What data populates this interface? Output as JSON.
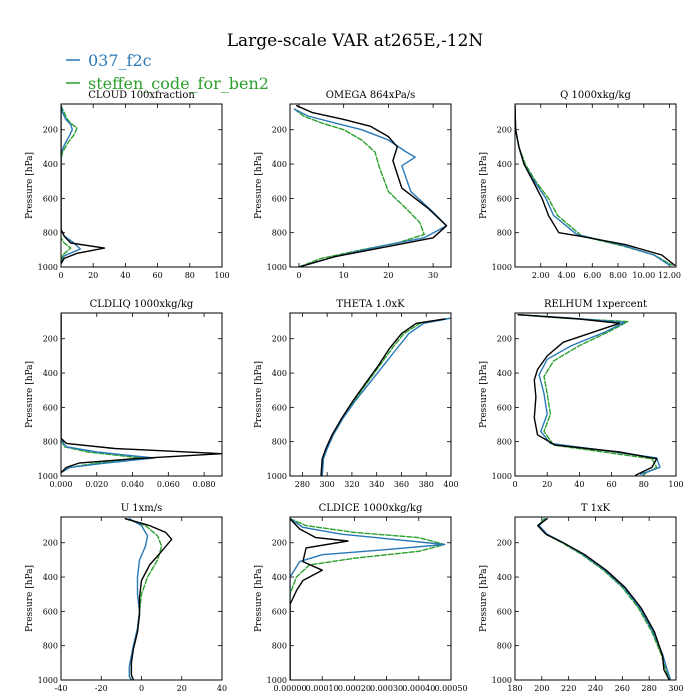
{
  "title": "Large-scale VAR at265E,-12N",
  "legend": [
    {
      "label": "037_f2c",
      "color": "#2878b8",
      "dash": false
    },
    {
      "label": "steffen_code_for_ben2",
      "color": "#2ca02c",
      "dash": true
    }
  ],
  "colors": {
    "control": "#000000",
    "blue": "#2878b8",
    "green": "#2ca02c"
  },
  "chart_data": [
    {
      "type": "line",
      "title": "CLOUD 100xfraction",
      "ylabel": "Pressure [hPa]",
      "xlim": [
        0,
        100
      ],
      "ylim": [
        1000,
        50
      ],
      "y_inverted": true,
      "xticks": [
        0,
        20,
        40,
        60,
        80,
        100
      ],
      "xticklabels": [
        "0",
        "20",
        "40",
        "60",
        "80",
        "100"
      ],
      "yticks": [
        200,
        400,
        600,
        800,
        1000
      ],
      "series": [
        {
          "color": "#2ca02c",
          "dash": true,
          "x": [
            0,
            2,
            4,
            7,
            10,
            8,
            4,
            1,
            0,
            0,
            0,
            0,
            2,
            6,
            1,
            0
          ],
          "y": [
            60,
            100,
            140,
            170,
            190,
            230,
            280,
            330,
            370,
            600,
            780,
            830,
            860,
            890,
            930,
            980
          ]
        },
        {
          "color": "#2878b8",
          "x": [
            0,
            1,
            3,
            6,
            7,
            5,
            2,
            0,
            0,
            0,
            0,
            2,
            8,
            12,
            2,
            0
          ],
          "y": [
            60,
            100,
            140,
            170,
            200,
            240,
            290,
            340,
            380,
            600,
            780,
            820,
            860,
            895,
            935,
            980
          ]
        },
        {
          "color": "#000000",
          "x": [
            0,
            0,
            0,
            0,
            2,
            6,
            27,
            10,
            2,
            0
          ],
          "y": [
            60,
            300,
            600,
            780,
            820,
            860,
            890,
            920,
            950,
            980
          ]
        }
      ]
    },
    {
      "type": "line",
      "title": "OMEGA 864xPa/s",
      "ylabel": "Pressure [hPa]",
      "xlim": [
        -2,
        34
      ],
      "ylim": [
        1000,
        50
      ],
      "y_inverted": true,
      "xticks": [
        0,
        10,
        20,
        30
      ],
      "xticklabels": [
        "0",
        "10",
        "20",
        "30"
      ],
      "yticks": [
        200,
        400,
        600,
        800,
        1000
      ],
      "series": [
        {
          "color": "#2ca02c",
          "dash": true,
          "x": [
            -1,
            1,
            5,
            10,
            14,
            17,
            18,
            20,
            24,
            27,
            28,
            22,
            14,
            5,
            0
          ],
          "y": [
            80,
            120,
            160,
            200,
            260,
            330,
            420,
            560,
            660,
            740,
            810,
            860,
            900,
            950,
            1000
          ]
        },
        {
          "color": "#2878b8",
          "x": [
            -1,
            2,
            8,
            14,
            20,
            24,
            26,
            23,
            25,
            30,
            33,
            28,
            18,
            8,
            0
          ],
          "y": [
            80,
            120,
            160,
            200,
            260,
            330,
            360,
            410,
            560,
            680,
            760,
            830,
            880,
            940,
            1000
          ]
        },
        {
          "color": "#000000",
          "x": [
            -0.5,
            3,
            10,
            16,
            20,
            22,
            21,
            23,
            29,
            33,
            30,
            20,
            8,
            0
          ],
          "y": [
            60,
            100,
            140,
            180,
            240,
            300,
            380,
            540,
            660,
            760,
            830,
            880,
            940,
            1000
          ]
        }
      ]
    },
    {
      "type": "line",
      "title": "Q 1000xkg/kg",
      "ylabel": "Pressure [hPa]",
      "xlim": [
        0,
        12.5
      ],
      "ylim": [
        1000,
        50
      ],
      "y_inverted": true,
      "xticks": [
        2,
        4,
        6,
        8,
        10,
        12
      ],
      "xticklabels": [
        "2.00",
        "4.00",
        "6.00",
        "8.00",
        "10.00",
        "12.00"
      ],
      "yticks": [
        200,
        400,
        600,
        800,
        1000
      ],
      "series": [
        {
          "color": "#2ca02c",
          "dash": true,
          "x": [
            0,
            0.05,
            0.3,
            0.8,
            1.6,
            2.6,
            3.3,
            5.2,
            8.5,
            10.8,
            12.2
          ],
          "y": [
            60,
            200,
            300,
            400,
            500,
            600,
            700,
            820,
            880,
            930,
            990
          ]
        },
        {
          "color": "#2878b8",
          "x": [
            0,
            0.05,
            0.3,
            0.7,
            1.5,
            2.4,
            3.0,
            4.8,
            8.2,
            10.8,
            12.0
          ],
          "y": [
            60,
            200,
            300,
            400,
            500,
            600,
            700,
            810,
            870,
            930,
            990
          ]
        },
        {
          "color": "#000000",
          "x": [
            0,
            0.05,
            0.3,
            0.7,
            1.4,
            2.1,
            2.6,
            3.4,
            5.0,
            8.6,
            11.4,
            12.4
          ],
          "y": [
            60,
            200,
            300,
            400,
            500,
            600,
            700,
            800,
            820,
            870,
            930,
            990
          ]
        }
      ]
    },
    {
      "type": "line",
      "title": "CLDLIQ 1000xkg/kg",
      "ylabel": "Pressure [hPa]",
      "xlim": [
        0,
        0.09
      ],
      "ylim": [
        1000,
        50
      ],
      "y_inverted": true,
      "xticks": [
        0,
        0.02,
        0.04,
        0.06,
        0.08
      ],
      "xticklabels": [
        "0.000",
        "0.020",
        "0.040",
        "0.060",
        "0.080"
      ],
      "yticks": [
        200,
        400,
        600,
        800,
        1000
      ],
      "series": [
        {
          "color": "#2ca02c",
          "dash": true,
          "x": [
            0,
            0,
            0,
            0.002,
            0.015,
            0.045,
            0.02,
            0.005,
            0
          ],
          "y": [
            60,
            600,
            790,
            830,
            860,
            895,
            925,
            950,
            980
          ]
        },
        {
          "color": "#2878b8",
          "x": [
            0,
            0,
            0,
            0.003,
            0.02,
            0.052,
            0.025,
            0.005,
            0
          ],
          "y": [
            60,
            600,
            790,
            830,
            860,
            895,
            925,
            950,
            980
          ]
        },
        {
          "color": "#000000",
          "x": [
            0,
            0,
            0,
            0.003,
            0.03,
            0.09,
            0.04,
            0.01,
            0.003,
            0
          ],
          "y": [
            60,
            600,
            780,
            810,
            840,
            870,
            900,
            925,
            950,
            980
          ]
        }
      ]
    },
    {
      "type": "line",
      "title": "THETA 1.0xK",
      "ylabel": "Pressure [hPa]",
      "xlim": [
        270,
        400
      ],
      "ylim": [
        1000,
        50
      ],
      "y_inverted": true,
      "xticks": [
        280,
        300,
        320,
        340,
        360,
        380,
        400
      ],
      "xticklabels": [
        "280",
        "300",
        "320",
        "340",
        "360",
        "380",
        "400"
      ],
      "yticks": [
        200,
        400,
        600,
        800,
        1000
      ],
      "series": [
        {
          "color": "#2ca02c",
          "dash": true,
          "x": [
            296,
            297,
            300,
            305,
            313,
            322,
            332,
            342,
            352,
            362,
            375,
            400
          ],
          "y": [
            1000,
            900,
            840,
            760,
            660,
            560,
            460,
            360,
            260,
            170,
            110,
            80
          ]
        },
        {
          "color": "#2878b8",
          "x": [
            296,
            297,
            300,
            305,
            313,
            323,
            334,
            345,
            356,
            366,
            378,
            400
          ],
          "y": [
            1000,
            900,
            840,
            760,
            660,
            560,
            460,
            360,
            260,
            170,
            110,
            80
          ]
        },
        {
          "color": "#000000",
          "x": [
            295,
            296,
            299,
            304,
            312,
            321,
            331,
            341,
            350,
            360,
            372,
            395
          ],
          "y": [
            1000,
            900,
            840,
            760,
            660,
            560,
            460,
            360,
            260,
            170,
            110,
            85
          ]
        }
      ]
    },
    {
      "type": "line",
      "title": "RELHUM 1xpercent",
      "ylabel": "Pressure [hPa]",
      "xlim": [
        0,
        100
      ],
      "ylim": [
        1000,
        50
      ],
      "y_inverted": true,
      "xticks": [
        0,
        20,
        40,
        60,
        80,
        100
      ],
      "xticklabels": [
        "0",
        "20",
        "40",
        "60",
        "80",
        "100"
      ],
      "yticks": [
        200,
        400,
        600,
        800,
        1000
      ],
      "series": [
        {
          "color": "#2ca02c",
          "dash": true,
          "x": [
            2,
            30,
            70,
            58,
            40,
            24,
            18,
            20,
            22,
            18,
            24,
            55,
            85,
            88,
            80
          ],
          "y": [
            60,
            80,
            100,
            160,
            240,
            330,
            420,
            520,
            640,
            740,
            820,
            860,
            900,
            950,
            990
          ]
        },
        {
          "color": "#2878b8",
          "x": [
            2,
            35,
            68,
            55,
            35,
            20,
            15,
            18,
            20,
            16,
            22,
            55,
            88,
            90,
            78
          ],
          "y": [
            60,
            80,
            105,
            165,
            240,
            320,
            410,
            520,
            640,
            740,
            810,
            850,
            895,
            950,
            990
          ]
        },
        {
          "color": "#000000",
          "x": [
            2,
            40,
            65,
            30,
            20,
            14,
            12,
            13,
            12,
            14,
            25,
            65,
            88,
            85,
            75
          ],
          "y": [
            60,
            85,
            110,
            220,
            300,
            380,
            440,
            540,
            660,
            760,
            820,
            860,
            900,
            950,
            995
          ]
        }
      ]
    },
    {
      "type": "line",
      "title": "U 1xm/s",
      "ylabel": "Pressure [hPa]",
      "xlim": [
        -40,
        40
      ],
      "ylim": [
        1000,
        50
      ],
      "y_inverted": true,
      "xticks": [
        -40,
        -20,
        0,
        20,
        40
      ],
      "xticklabels": [
        "-40",
        "-20",
        "0",
        "20",
        "40"
      ],
      "yticks": [
        200,
        400,
        600,
        800,
        1000
      ],
      "series": [
        {
          "color": "#2ca02c",
          "dash": true,
          "x": [
            -8,
            2,
            8,
            10,
            8,
            3,
            0,
            -1,
            -2,
            -4,
            -5,
            -6,
            -6,
            -5
          ],
          "y": [
            60,
            100,
            160,
            220,
            300,
            400,
            500,
            600,
            700,
            800,
            860,
            920,
            980,
            1000
          ]
        },
        {
          "color": "#2878b8",
          "x": [
            -6,
            0,
            3,
            2,
            -1,
            -2,
            -2,
            -1,
            -2,
            -4,
            -5,
            -6,
            -6,
            -5
          ],
          "y": [
            60,
            100,
            160,
            220,
            300,
            400,
            500,
            600,
            700,
            800,
            860,
            920,
            980,
            1000
          ]
        },
        {
          "color": "#000000",
          "x": [
            -8,
            4,
            12,
            15,
            10,
            4,
            0,
            -1,
            -1,
            -2,
            -4,
            -5,
            -5,
            -4
          ],
          "y": [
            60,
            100,
            140,
            180,
            250,
            330,
            420,
            520,
            620,
            720,
            820,
            900,
            970,
            1000
          ]
        }
      ]
    },
    {
      "type": "line",
      "title": "CLDICE 1000xkg/kg",
      "ylabel": "Pressure [hPa]",
      "xlim": [
        0,
        0.0005
      ],
      "ylim": [
        1000,
        50
      ],
      "y_inverted": true,
      "xticks": [
        0,
        0.0001,
        0.0002,
        0.0003,
        0.0004,
        0.0005
      ],
      "xticklabels": [
        "0.00000",
        "0.00010",
        "0.00020",
        "0.00030",
        "0.00040",
        "0.00050"
      ],
      "yticks": [
        200,
        400,
        600,
        800,
        1000
      ],
      "series": [
        {
          "color": "#2ca02c",
          "dash": true,
          "x": [
            0,
            5e-05,
            0.0002,
            0.0004,
            0.00048,
            0.0004,
            0.0002,
            6e-05,
            2e-05,
            0,
            0
          ],
          "y": [
            60,
            100,
            140,
            170,
            210,
            250,
            290,
            330,
            400,
            500,
            1000
          ]
        },
        {
          "color": "#2878b8",
          "x": [
            0,
            4e-05,
            0.00016,
            0.00032,
            0.00048,
            0.0003,
            0.0001,
            3e-05,
            0,
            0
          ],
          "y": [
            60,
            110,
            150,
            180,
            210,
            240,
            270,
            310,
            400,
            1000
          ]
        },
        {
          "color": "#000000",
          "x": [
            0,
            1e-05,
            3e-05,
            8e-05,
            0.00018,
            5e-05,
            4e-05,
            0.0001,
            4e-05,
            2e-05,
            0,
            0
          ],
          "y": [
            60,
            80,
            120,
            170,
            190,
            230,
            310,
            360,
            420,
            480,
            560,
            1000
          ]
        }
      ]
    },
    {
      "type": "line",
      "title": "T 1xK",
      "ylabel": "Pressure [hPa]",
      "xlim": [
        180,
        300
      ],
      "ylim": [
        1000,
        50
      ],
      "y_inverted": true,
      "xticks": [
        180,
        200,
        220,
        240,
        260,
        280,
        300
      ],
      "xticklabels": [
        "180",
        "200",
        "220",
        "240",
        "260",
        "280",
        "300"
      ],
      "yticks": [
        200,
        400,
        600,
        800,
        1000
      ],
      "series": [
        {
          "color": "#2ca02c",
          "dash": true,
          "x": [
            202,
            197,
            203,
            215,
            230,
            246,
            260,
            272,
            282,
            289,
            292,
            295
          ],
          "y": [
            60,
            100,
            150,
            200,
            270,
            360,
            460,
            580,
            720,
            850,
            930,
            1000
          ]
        },
        {
          "color": "#2878b8",
          "x": [
            203,
            198,
            204,
            216,
            231,
            247,
            261,
            273,
            283,
            290,
            293,
            296
          ],
          "y": [
            60,
            100,
            150,
            200,
            270,
            360,
            460,
            580,
            720,
            850,
            930,
            1000
          ]
        },
        {
          "color": "#000000",
          "x": [
            204,
            197,
            203,
            216,
            232,
            248,
            262,
            274,
            284,
            290,
            291,
            295
          ],
          "y": [
            60,
            100,
            150,
            200,
            270,
            360,
            460,
            580,
            720,
            860,
            940,
            1000
          ]
        }
      ]
    }
  ]
}
